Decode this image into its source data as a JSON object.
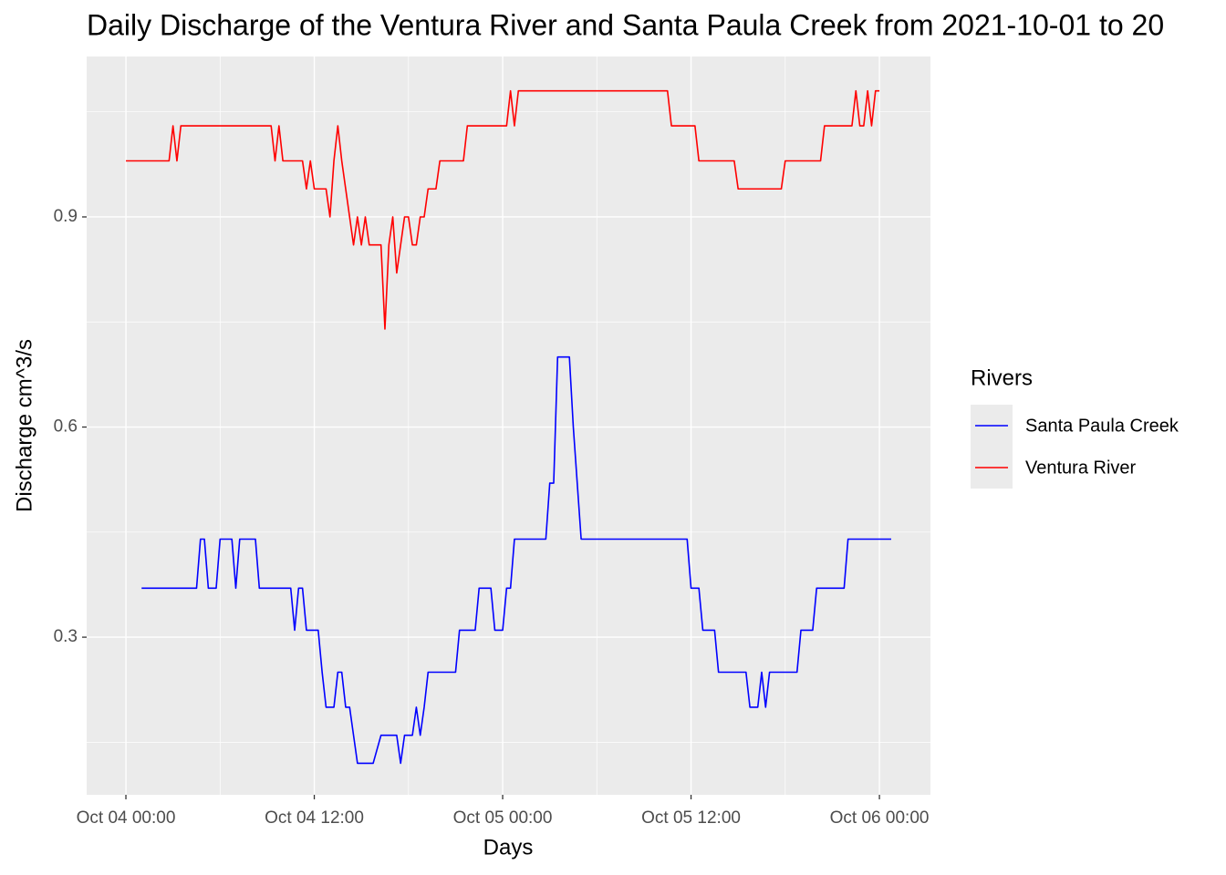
{
  "chart_data": {
    "type": "line",
    "title": "Daily Discharge of the Ventura River and Santa Paula Creek from 2021-10-01 to 20",
    "x_label": "Days",
    "y_label": "Discharge cm^3/s",
    "legend_title": "Rivers",
    "legend_position": "right",
    "grid": true,
    "xlim": [
      "Oct 03 21:30",
      "Oct 06 03:15"
    ],
    "xticks": [
      "Oct 04 00:00",
      "Oct 04 12:00",
      "Oct 05 00:00",
      "Oct 05 12:00",
      "Oct 06 00:00"
    ],
    "ylim": [
      0.075,
      1.129
    ],
    "yticks": [
      0.3,
      0.6,
      0.9
    ],
    "series": [
      {
        "name": "Santa Paula Creek",
        "color": "#0000ff",
        "x": [
          "Oct 04 01:00",
          "Oct 04 04:30",
          "Oct 04 04:45",
          "Oct 04 05:00",
          "Oct 04 05:15",
          "Oct 04 05:45",
          "Oct 04 06:00",
          "Oct 04 06:45",
          "Oct 04 07:00",
          "Oct 04 07:15",
          "Oct 04 08:15",
          "Oct 04 08:30",
          "Oct 04 10:30",
          "Oct 04 10:45",
          "Oct 04 11:00",
          "Oct 04 11:15",
          "Oct 04 11:30",
          "Oct 04 12:15",
          "Oct 04 12:30",
          "Oct 04 12:45",
          "Oct 04 13:15",
          "Oct 04 13:30",
          "Oct 04 13:45",
          "Oct 04 14:00",
          "Oct 04 14:15",
          "Oct 04 14:30",
          "Oct 04 14:45",
          "Oct 04 15:45",
          "Oct 04 16:15",
          "Oct 04 17:15",
          "Oct 04 17:30",
          "Oct 04 17:45",
          "Oct 04 18:15",
          "Oct 04 18:30",
          "Oct 04 18:45",
          "Oct 04 19:00",
          "Oct 04 19:15",
          "Oct 04 21:00",
          "Oct 04 21:15",
          "Oct 04 22:15",
          "Oct 04 22:30",
          "Oct 04 23:15",
          "Oct 04 23:30",
          "Oct 05 00:00",
          "Oct 05 00:15",
          "Oct 05 00:30",
          "Oct 05 00:45",
          "Oct 05 02:45",
          "Oct 05 03:00",
          "Oct 05 03:15",
          "Oct 05 03:30",
          "Oct 05 04:15",
          "Oct 05 04:30",
          "Oct 05 04:45",
          "Oct 05 05:00",
          "Oct 05 11:45",
          "Oct 05 12:00",
          "Oct 05 12:30",
          "Oct 05 12:45",
          "Oct 05 13:30",
          "Oct 05 13:45",
          "Oct 05 15:30",
          "Oct 05 15:45",
          "Oct 05 16:15",
          "Oct 05 16:30",
          "Oct 05 16:45",
          "Oct 05 17:00",
          "Oct 05 18:45",
          "Oct 05 19:00",
          "Oct 05 19:45",
          "Oct 05 20:00",
          "Oct 05 21:45",
          "Oct 05 22:00",
          "Oct 06 00:45"
        ],
        "values": [
          0.37,
          0.37,
          0.44,
          0.44,
          0.37,
          0.37,
          0.44,
          0.44,
          0.37,
          0.44,
          0.44,
          0.37,
          0.37,
          0.31,
          0.37,
          0.37,
          0.31,
          0.31,
          0.25,
          0.2,
          0.2,
          0.25,
          0.25,
          0.2,
          0.2,
          0.16,
          0.12,
          0.12,
          0.16,
          0.16,
          0.12,
          0.16,
          0.16,
          0.2,
          0.16,
          0.2,
          0.25,
          0.25,
          0.31,
          0.31,
          0.37,
          0.37,
          0.31,
          0.31,
          0.37,
          0.37,
          0.44,
          0.44,
          0.52,
          0.52,
          0.7,
          0.7,
          0.6,
          0.52,
          0.44,
          0.44,
          0.37,
          0.37,
          0.31,
          0.31,
          0.25,
          0.25,
          0.2,
          0.2,
          0.25,
          0.2,
          0.25,
          0.25,
          0.31,
          0.31,
          0.37,
          0.37,
          0.44,
          0.44
        ]
      },
      {
        "name": "Ventura River",
        "color": "#ff0000",
        "x": [
          "Oct 04 00:00",
          "Oct 04 02:45",
          "Oct 04 03:00",
          "Oct 04 03:15",
          "Oct 04 03:30",
          "Oct 04 03:45",
          "Oct 04 09:15",
          "Oct 04 09:30",
          "Oct 04 09:45",
          "Oct 04 10:00",
          "Oct 04 11:15",
          "Oct 04 11:30",
          "Oct 04 11:45",
          "Oct 04 12:00",
          "Oct 04 12:45",
          "Oct 04 13:00",
          "Oct 04 13:15",
          "Oct 04 13:30",
          "Oct 04 13:45",
          "Oct 04 14:00",
          "Oct 04 14:15",
          "Oct 04 14:30",
          "Oct 04 14:45",
          "Oct 04 15:00",
          "Oct 04 15:15",
          "Oct 04 15:30",
          "Oct 04 16:15",
          "Oct 04 16:30",
          "Oct 04 16:45",
          "Oct 04 17:00",
          "Oct 04 17:15",
          "Oct 04 17:30",
          "Oct 04 17:45",
          "Oct 04 18:00",
          "Oct 04 18:15",
          "Oct 04 18:30",
          "Oct 04 18:45",
          "Oct 04 19:00",
          "Oct 04 19:15",
          "Oct 04 19:45",
          "Oct 04 20:00",
          "Oct 04 21:30",
          "Oct 04 21:45",
          "Oct 05 00:15",
          "Oct 05 00:30",
          "Oct 05 00:45",
          "Oct 05 01:00",
          "Oct 05 10:30",
          "Oct 05 10:45",
          "Oct 05 12:15",
          "Oct 05 12:30",
          "Oct 05 14:45",
          "Oct 05 15:00",
          "Oct 05 17:45",
          "Oct 05 18:00",
          "Oct 05 20:15",
          "Oct 05 20:30",
          "Oct 05 22:15",
          "Oct 05 22:30",
          "Oct 05 22:45",
          "Oct 05 23:00",
          "Oct 05 23:15",
          "Oct 05 23:30",
          "Oct 05 23:45",
          "Oct 06 00:00"
        ],
        "values": [
          0.98,
          0.98,
          1.03,
          0.98,
          1.03,
          1.03,
          1.03,
          0.98,
          1.03,
          0.98,
          0.98,
          0.94,
          0.98,
          0.94,
          0.94,
          0.9,
          0.98,
          1.03,
          0.98,
          0.94,
          0.9,
          0.86,
          0.9,
          0.86,
          0.9,
          0.86,
          0.86,
          0.74,
          0.86,
          0.9,
          0.82,
          0.86,
          0.9,
          0.9,
          0.86,
          0.86,
          0.9,
          0.9,
          0.94,
          0.94,
          0.98,
          0.98,
          1.03,
          1.03,
          1.08,
          1.03,
          1.08,
          1.08,
          1.03,
          1.03,
          0.98,
          0.98,
          0.94,
          0.94,
          0.98,
          0.98,
          1.03,
          1.03,
          1.08,
          1.03,
          1.03,
          1.08,
          1.03,
          1.08,
          1.08
        ]
      }
    ]
  }
}
